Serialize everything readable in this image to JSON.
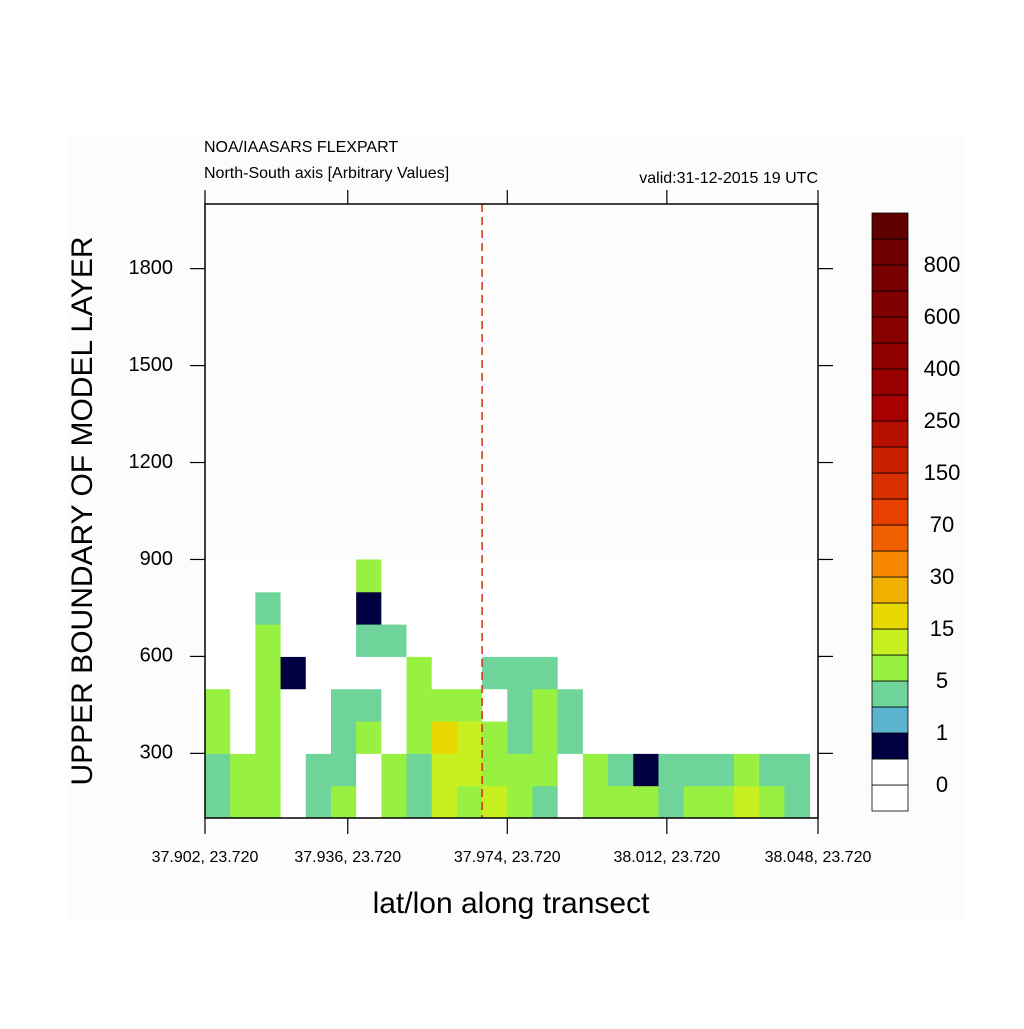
{
  "chart_data": {
    "type": "contour",
    "title": "NOA/IAASARS FLEXPART",
    "subtitle": "North-South axis [Arbitrary Values]",
    "valid_label": "valid:31-12-2015 19 UTC",
    "ylabel": "UPPER BOUNDARY OF MODEL LAYER",
    "xlabel": "lat/lon along transect",
    "xlim": [
      37.902,
      38.048
    ],
    "xticks": [
      {
        "value": 37.902,
        "label": "37.902, 23.720"
      },
      {
        "value": 37.936,
        "label": "37.936, 23.720"
      },
      {
        "value": 37.974,
        "label": "37.974, 23.720"
      },
      {
        "value": 38.012,
        "label": "38.012, 23.720"
      },
      {
        "value": 38.048,
        "label": "38.048, 23.720"
      }
    ],
    "ylim": [
      100,
      2000
    ],
    "yticks": [
      300,
      600,
      900,
      1200,
      1500,
      1800
    ],
    "marker_x": 37.968,
    "marker_color": "#d03010",
    "x": [
      37.905,
      37.911,
      37.917,
      37.923,
      37.929,
      37.935,
      37.941,
      37.947,
      37.953,
      37.959,
      37.965,
      37.971,
      37.977,
      37.983,
      37.989,
      37.995,
      38.001,
      38.007,
      38.013,
      38.019,
      38.025,
      38.031,
      38.037,
      38.043
    ],
    "y": [
      150,
      250,
      350,
      450,
      550,
      650,
      750,
      850
    ],
    "z": [
      [
        3,
        6,
        6,
        0,
        3,
        6,
        0,
        6,
        3,
        12,
        6,
        12,
        6,
        3,
        0,
        6,
        6,
        6,
        3,
        6,
        6,
        12,
        6,
        3
      ],
      [
        3,
        6,
        6,
        0,
        3,
        3,
        0,
        6,
        3,
        12,
        12,
        6,
        6,
        6,
        0,
        6,
        3,
        0.6,
        3,
        3,
        3,
        6,
        3,
        3
      ],
      [
        6,
        0,
        6,
        0,
        0,
        3,
        6,
        0,
        6,
        18,
        12,
        6,
        3,
        6,
        3,
        0,
        0,
        0,
        0,
        0,
        0,
        0,
        0,
        0
      ],
      [
        6,
        0,
        6,
        0,
        0,
        3,
        3,
        0,
        6,
        6,
        6,
        0,
        3,
        6,
        3,
        0,
        0,
        0,
        0,
        0,
        0,
        0,
        0,
        0
      ],
      [
        0,
        0,
        6,
        0.6,
        0,
        0,
        0,
        0,
        6,
        0,
        0,
        3,
        3,
        3,
        0,
        0,
        0,
        0,
        0,
        0,
        0,
        0,
        0,
        0
      ],
      [
        0,
        0,
        6,
        0,
        0,
        0,
        3,
        3,
        0,
        0,
        0,
        0,
        0,
        0,
        0,
        0,
        0,
        0,
        0,
        0,
        0,
        0,
        0,
        0
      ],
      [
        0,
        0,
        3,
        0,
        0,
        0,
        0.6,
        0,
        0,
        0,
        0,
        0,
        0,
        0,
        0,
        0,
        0,
        0,
        0,
        0,
        0,
        0,
        0,
        0
      ],
      [
        0,
        0,
        0,
        0,
        0,
        0,
        6,
        0,
        0,
        0,
        0,
        0,
        0,
        0,
        0,
        0,
        0,
        0,
        0,
        0,
        0,
        0,
        0,
        0
      ]
    ],
    "colorbar_ticks": [
      0,
      1,
      5,
      15,
      30,
      70,
      150,
      250,
      400,
      600,
      800
    ],
    "colorbar_colors": [
      "#ffffff",
      "#ffffff",
      "#000040",
      "#5ab4d0",
      "#6ed49a",
      "#98f040",
      "#c8f020",
      "#e8d800",
      "#f0b000",
      "#f88800",
      "#f06000",
      "#e84000",
      "#d83000",
      "#c82000",
      "#b81000",
      "#a80000",
      "#980000",
      "#900000",
      "#880000",
      "#800000",
      "#780000",
      "#700000",
      "#600000"
    ]
  }
}
